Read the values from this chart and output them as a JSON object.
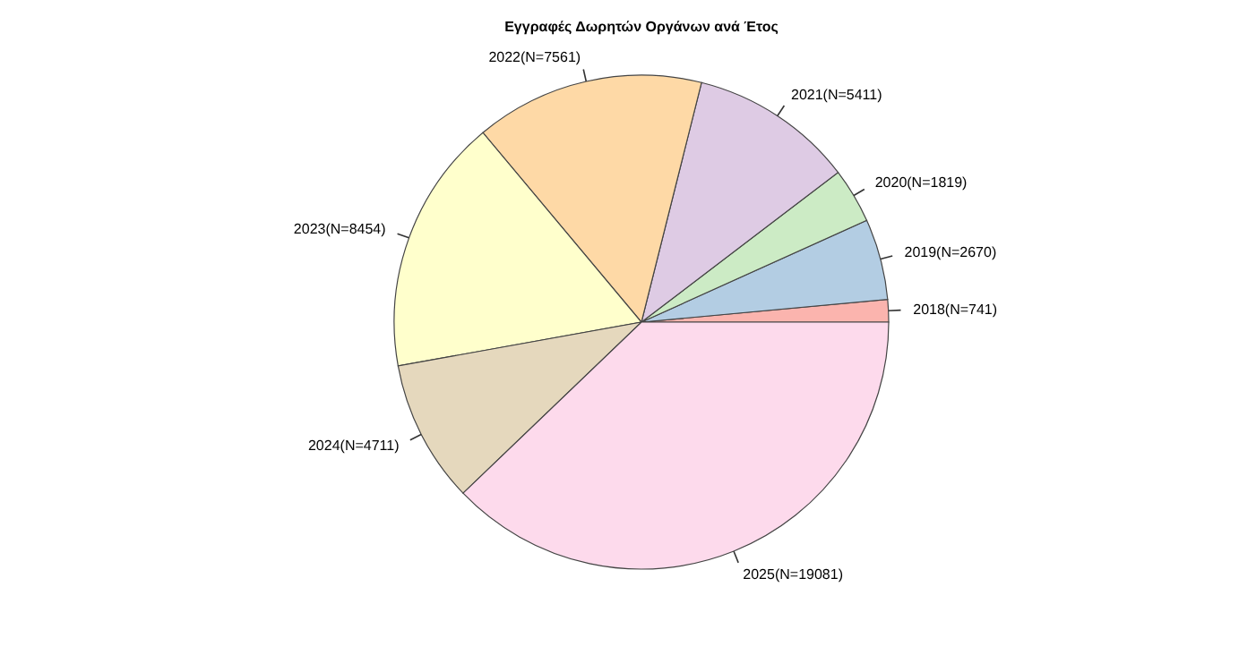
{
  "chart_data": {
    "type": "pie",
    "title": "Εγγραφές Δωρητών Οργάνων ανά Έτος",
    "categories": [
      "2018(N=741)",
      "2019(N=2670)",
      "2020(N=1819)",
      "2021(N=5411)",
      "2022(N=7561)",
      "2023(N=8454)",
      "2024(N=4711)",
      "2025(N=19081)"
    ],
    "values": [
      741,
      2670,
      1819,
      5411,
      7561,
      8454,
      4711,
      19081
    ],
    "colors": [
      "#fbb4ae",
      "#b3cde3",
      "#ccebc5",
      "#decbe4",
      "#fed9a6",
      "#ffffcc",
      "#e5d8bd",
      "#fddaec"
    ],
    "legend": false
  }
}
